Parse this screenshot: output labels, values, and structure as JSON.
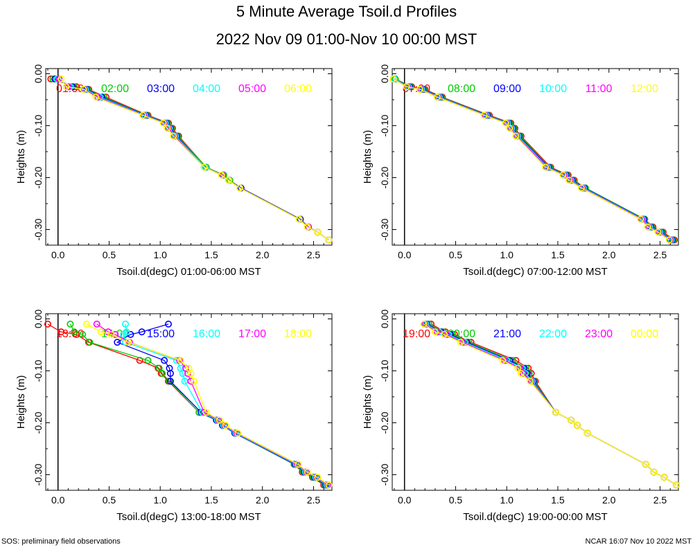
{
  "title": "5 Minute Average Tsoil.d Profiles",
  "subtitle": "2022 Nov 09 01:00-Nov 10 00:00 MST",
  "footer": {
    "left": "SOS: preliminary field observations",
    "right": "NCAR 16:07 Nov 10 2022 MST"
  },
  "colors": [
    "#ff0000",
    "#00cc00",
    "#0000ff",
    "#00ffff",
    "#ff00ff",
    "#ffff00"
  ],
  "chart_data": [
    {
      "type": "line",
      "xlabel": "Tsoil.d(degC) 01:00-06:00 MST",
      "ylabel": "Heights (m)",
      "xlim": [
        -0.12,
        2.68
      ],
      "ylim": [
        0.01,
        -0.33
      ],
      "xticks": [
        0.0,
        0.5,
        1.0,
        1.5,
        2.0,
        2.5
      ],
      "xtick_labels": [
        "0.0",
        "0.5",
        "1.0",
        "1.5",
        "2.0",
        "2.5"
      ],
      "yticks": [
        0.0,
        -0.1,
        -0.2,
        -0.3
      ],
      "ytick_labels": [
        "0.00",
        "-0.10",
        "-0.20",
        "-0.30"
      ],
      "series": [
        {
          "name": "01:00",
          "y": [
            -0.01,
            -0.025,
            -0.03,
            -0.045,
            -0.08,
            -0.095,
            -0.105,
            -0.12,
            -0.18,
            -0.195,
            -0.205,
            -0.22,
            -0.28,
            -0.295,
            -0.305,
            -0.32
          ],
          "x": [
            -0.07,
            0.18,
            0.3,
            0.47,
            0.88,
            1.08,
            1.12,
            1.18,
            1.45,
            1.62,
            1.68,
            1.79,
            2.37,
            2.45,
            2.54,
            2.65
          ]
        },
        {
          "name": "02:00",
          "y": [
            -0.01,
            -0.025,
            -0.03,
            -0.045,
            -0.08,
            -0.095,
            -0.105,
            -0.12,
            -0.18,
            -0.195,
            -0.205,
            -0.22,
            -0.28,
            -0.295,
            -0.305,
            -0.32
          ],
          "x": [
            -0.05,
            0.16,
            0.29,
            0.45,
            0.87,
            1.07,
            1.11,
            1.17,
            1.45,
            1.62,
            1.68,
            1.79,
            2.37,
            2.45,
            2.54,
            2.65
          ]
        },
        {
          "name": "03:00",
          "y": [
            -0.01,
            -0.025,
            -0.03,
            -0.045,
            -0.08,
            -0.095,
            -0.105,
            -0.12,
            -0.18,
            -0.195,
            -0.205,
            -0.22,
            -0.28,
            -0.295,
            -0.305,
            -0.32
          ],
          "x": [
            -0.03,
            0.14,
            0.28,
            0.43,
            0.86,
            1.06,
            1.1,
            1.16,
            1.44,
            1.61,
            1.67,
            1.79,
            2.37,
            2.45,
            2.54,
            2.65
          ]
        },
        {
          "name": "04:00",
          "y": [
            -0.01,
            -0.025,
            -0.03,
            -0.045,
            -0.08,
            -0.095,
            -0.105,
            -0.12,
            -0.18,
            -0.195,
            -0.205,
            -0.22,
            -0.28,
            -0.295,
            -0.305,
            -0.32
          ],
          "x": [
            -0.01,
            0.12,
            0.27,
            0.41,
            0.85,
            1.05,
            1.09,
            1.15,
            1.44,
            1.61,
            1.67,
            1.78,
            2.36,
            2.45,
            2.54,
            2.65
          ]
        },
        {
          "name": "05:00",
          "y": [
            -0.01,
            -0.025,
            -0.03,
            -0.045,
            -0.08,
            -0.095,
            -0.105,
            -0.12,
            -0.18,
            -0.195,
            -0.205,
            -0.22,
            -0.28,
            -0.295,
            -0.305,
            -0.32
          ],
          "x": [
            0.01,
            0.1,
            0.26,
            0.39,
            0.84,
            1.04,
            1.08,
            1.14,
            1.43,
            1.61,
            1.67,
            1.78,
            2.36,
            2.45,
            2.54,
            2.65
          ]
        },
        {
          "name": "06:00",
          "y": [
            -0.01,
            -0.025,
            -0.03,
            -0.045,
            -0.08,
            -0.095,
            -0.105,
            -0.12,
            -0.18,
            -0.195,
            -0.205,
            -0.22,
            -0.28,
            -0.295,
            -0.305,
            -0.32
          ],
          "x": [
            0.03,
            0.08,
            0.25,
            0.37,
            0.83,
            1.03,
            1.07,
            1.13,
            1.43,
            1.6,
            1.67,
            1.78,
            2.36,
            2.44,
            2.54,
            2.65
          ]
        }
      ]
    },
    {
      "type": "line",
      "xlabel": "Tsoil.d(degC) 07:00-12:00 MST",
      "ylabel": "Heights (m)",
      "xlim": [
        -0.12,
        2.68
      ],
      "ylim": [
        0.01,
        -0.33
      ],
      "xticks": [
        0.0,
        0.5,
        1.0,
        1.5,
        2.0,
        2.5
      ],
      "xtick_labels": [
        "0.0",
        "0.5",
        "1.0",
        "1.5",
        "2.0",
        "2.5"
      ],
      "yticks": [
        0.0,
        -0.1,
        -0.2,
        -0.3
      ],
      "ytick_labels": [
        "0.00",
        "-0.10",
        "-0.20",
        "-0.30"
      ],
      "series": [
        {
          "name": "07:00",
          "y": [
            -0.01,
            -0.025,
            -0.03,
            -0.045,
            -0.08,
            -0.095,
            -0.105,
            -0.12,
            -0.18,
            -0.195,
            -0.205,
            -0.22,
            -0.28,
            -0.295,
            -0.305,
            -0.32
          ],
          "x": [
            -0.09,
            0.07,
            0.2,
            0.37,
            0.83,
            1.04,
            1.08,
            1.14,
            1.43,
            1.6,
            1.66,
            1.77,
            2.35,
            2.43,
            2.53,
            2.64
          ]
        },
        {
          "name": "08:00",
          "y": [
            -0.01,
            -0.025,
            -0.03,
            -0.045,
            -0.08,
            -0.095,
            -0.105,
            -0.12,
            -0.18,
            -0.195,
            -0.205,
            -0.22,
            -0.28,
            -0.295,
            -0.305,
            -0.32
          ],
          "x": [
            -0.09,
            0.06,
            0.19,
            0.36,
            0.82,
            1.03,
            1.07,
            1.13,
            1.42,
            1.59,
            1.65,
            1.77,
            2.35,
            2.42,
            2.52,
            2.63
          ]
        },
        {
          "name": "09:00",
          "y": [
            -0.01,
            -0.025,
            -0.03,
            -0.045,
            -0.08,
            -0.095,
            -0.105,
            -0.12,
            -0.18,
            -0.195,
            -0.205,
            -0.22,
            -0.28,
            -0.295,
            -0.305,
            -0.32
          ],
          "x": [
            -0.1,
            0.05,
            0.18,
            0.35,
            0.81,
            1.02,
            1.06,
            1.12,
            1.41,
            1.58,
            1.64,
            1.76,
            2.34,
            2.41,
            2.51,
            2.62
          ]
        },
        {
          "name": "10:00",
          "y": [
            -0.01,
            -0.025,
            -0.03,
            -0.045,
            -0.08,
            -0.095,
            -0.105,
            -0.12,
            -0.18,
            -0.195,
            -0.205,
            -0.22,
            -0.28,
            -0.295,
            -0.305,
            -0.32
          ],
          "x": [
            -0.1,
            0.04,
            0.17,
            0.34,
            0.8,
            1.01,
            1.05,
            1.11,
            1.4,
            1.57,
            1.63,
            1.75,
            2.33,
            2.4,
            2.5,
            2.61
          ]
        },
        {
          "name": "11:00",
          "y": [
            -0.01,
            -0.025,
            -0.03,
            -0.045,
            -0.08,
            -0.095,
            -0.105,
            -0.12,
            -0.18,
            -0.195,
            -0.205,
            -0.22,
            -0.28,
            -0.295,
            -0.305,
            -0.32
          ],
          "x": [
            -0.11,
            0.03,
            0.16,
            0.33,
            0.79,
            1.0,
            1.04,
            1.1,
            1.39,
            1.56,
            1.62,
            1.74,
            2.32,
            2.39,
            2.49,
            2.6
          ]
        },
        {
          "name": "12:00",
          "y": [
            -0.01,
            -0.025,
            -0.03,
            -0.045,
            -0.08,
            -0.095,
            -0.105,
            -0.12,
            -0.18,
            -0.195,
            -0.205,
            -0.22,
            -0.28,
            -0.295,
            -0.305,
            -0.32
          ],
          "x": [
            -0.11,
            0.02,
            0.15,
            0.32,
            0.78,
            0.99,
            1.03,
            1.09,
            1.38,
            1.55,
            1.61,
            1.73,
            2.31,
            2.38,
            2.48,
            2.59
          ]
        }
      ]
    },
    {
      "type": "line",
      "xlabel": "Tsoil.d(degC) 13:00-18:00 MST",
      "ylabel": "Heights (m)",
      "xlim": [
        -0.12,
        2.68
      ],
      "ylim": [
        0.01,
        -0.33
      ],
      "xticks": [
        0.0,
        0.5,
        1.0,
        1.5,
        2.0,
        2.5
      ],
      "xtick_labels": [
        "0.0",
        "0.5",
        "1.0",
        "1.5",
        "2.0",
        "2.5"
      ],
      "yticks": [
        0.0,
        -0.1,
        -0.2,
        -0.3
      ],
      "ytick_labels": [
        "0.00",
        "-0.10",
        "-0.20",
        "-0.30"
      ],
      "series": [
        {
          "name": "13:00",
          "y": [
            -0.01,
            -0.025,
            -0.03,
            -0.045,
            -0.08,
            -0.095,
            -0.105,
            -0.12,
            -0.18,
            -0.195,
            -0.205,
            -0.22,
            -0.28,
            -0.295,
            -0.305,
            -0.32
          ],
          "x": [
            -0.1,
            0.03,
            0.18,
            0.3,
            0.8,
            0.98,
            1.01,
            1.08,
            1.38,
            1.55,
            1.61,
            1.73,
            2.31,
            2.39,
            2.49,
            2.6
          ]
        },
        {
          "name": "14:00",
          "y": [
            -0.01,
            -0.025,
            -0.03,
            -0.045,
            -0.08,
            -0.095,
            -0.105,
            -0.12,
            -0.18,
            -0.195,
            -0.205,
            -0.22,
            -0.28,
            -0.295,
            -0.305,
            -0.32
          ],
          "x": [
            0.12,
            0.16,
            0.24,
            0.31,
            0.88,
            0.99,
            1.02,
            1.09,
            1.38,
            1.55,
            1.61,
            1.73,
            2.31,
            2.4,
            2.5,
            2.61
          ]
        },
        {
          "name": "15:00",
          "y": [
            -0.01,
            -0.025,
            -0.03,
            -0.045,
            -0.08,
            -0.095,
            -0.105,
            -0.12,
            -0.18,
            -0.195,
            -0.205,
            -0.22,
            -0.28,
            -0.295,
            -0.305,
            -0.32
          ],
          "x": [
            1.08,
            0.82,
            0.71,
            0.58,
            1.04,
            1.09,
            1.1,
            1.1,
            1.4,
            1.55,
            1.61,
            1.73,
            2.32,
            2.41,
            2.51,
            2.62
          ]
        },
        {
          "name": "16:00",
          "y": [
            -0.01,
            -0.025,
            -0.03,
            -0.045,
            -0.08,
            -0.095,
            -0.105,
            -0.12,
            -0.18,
            -0.195,
            -0.205,
            -0.22,
            -0.28,
            -0.295,
            -0.305,
            -0.32
          ],
          "x": [
            0.66,
            0.67,
            0.64,
            0.66,
            1.16,
            1.2,
            1.22,
            1.24,
            1.41,
            1.56,
            1.62,
            1.74,
            2.33,
            2.42,
            2.52,
            2.63
          ]
        },
        {
          "name": "17:00",
          "y": [
            -0.01,
            -0.025,
            -0.03,
            -0.045,
            -0.08,
            -0.095,
            -0.105,
            -0.12,
            -0.18,
            -0.195,
            -0.205,
            -0.22,
            -0.28,
            -0.295,
            -0.305,
            -0.32
          ],
          "x": [
            0.38,
            0.49,
            0.56,
            0.7,
            1.19,
            1.25,
            1.27,
            1.3,
            1.43,
            1.57,
            1.63,
            1.75,
            2.34,
            2.43,
            2.53,
            2.64
          ]
        },
        {
          "name": "18:00",
          "y": [
            -0.01,
            -0.025,
            -0.03,
            -0.045,
            -0.08,
            -0.095,
            -0.105,
            -0.12,
            -0.18,
            -0.195,
            -0.205,
            -0.22,
            -0.28,
            -0.295,
            -0.305,
            -0.32
          ],
          "x": [
            0.28,
            0.42,
            0.52,
            0.69,
            1.2,
            1.28,
            1.3,
            1.33,
            1.45,
            1.58,
            1.64,
            1.76,
            2.35,
            2.44,
            2.54,
            2.65
          ]
        }
      ]
    },
    {
      "type": "line",
      "xlabel": "Tsoil.d(degC) 19:00-00:00 MST",
      "ylabel": "Heights (m)",
      "xlim": [
        -0.12,
        2.68
      ],
      "ylim": [
        0.01,
        -0.33
      ],
      "xticks": [
        0.0,
        0.5,
        1.0,
        1.5,
        2.0,
        2.5
      ],
      "xtick_labels": [
        "0.0",
        "0.5",
        "1.0",
        "1.5",
        "2.0",
        "2.5"
      ],
      "yticks": [
        0.0,
        -0.1,
        -0.2,
        -0.3
      ],
      "ytick_labels": [
        "0.00",
        "-0.10",
        "-0.20",
        "-0.30"
      ],
      "series": [
        {
          "name": "19:00",
          "y": [
            -0.01,
            -0.025,
            -0.03,
            -0.045,
            -0.08,
            -0.095,
            -0.105,
            -0.12,
            -0.18,
            -0.195,
            -0.205,
            -0.22,
            -0.28,
            -0.295,
            -0.305,
            -0.32
          ],
          "x": [
            0.26,
            0.4,
            0.49,
            0.65,
            1.09,
            1.21,
            1.24,
            1.28,
            1.48,
            1.63,
            1.69,
            1.79,
            2.36,
            2.44,
            2.54,
            2.66
          ]
        },
        {
          "name": "20:00",
          "y": [
            -0.01,
            -0.025,
            -0.03,
            -0.045,
            -0.08,
            -0.095,
            -0.105,
            -0.12,
            -0.18,
            -0.195,
            -0.205,
            -0.22,
            -0.28,
            -0.295,
            -0.305,
            -0.32
          ],
          "x": [
            0.24,
            0.38,
            0.47,
            0.63,
            1.06,
            1.19,
            1.22,
            1.27,
            1.48,
            1.63,
            1.69,
            1.79,
            2.36,
            2.44,
            2.54,
            2.66
          ]
        },
        {
          "name": "21:00",
          "y": [
            -0.01,
            -0.025,
            -0.03,
            -0.045,
            -0.08,
            -0.095,
            -0.105,
            -0.12,
            -0.18,
            -0.195,
            -0.205,
            -0.22,
            -0.28,
            -0.295,
            -0.305,
            -0.32
          ],
          "x": [
            0.22,
            0.36,
            0.45,
            0.61,
            1.03,
            1.17,
            1.2,
            1.26,
            1.48,
            1.63,
            1.69,
            1.79,
            2.36,
            2.44,
            2.54,
            2.66
          ]
        },
        {
          "name": "22:00",
          "y": [
            -0.01,
            -0.025,
            -0.03,
            -0.045,
            -0.08,
            -0.095,
            -0.105,
            -0.12,
            -0.18,
            -0.195,
            -0.205,
            -0.22,
            -0.28,
            -0.295,
            -0.305,
            -0.32
          ],
          "x": [
            0.21,
            0.34,
            0.43,
            0.59,
            1.0,
            1.15,
            1.18,
            1.25,
            1.48,
            1.63,
            1.69,
            1.79,
            2.36,
            2.44,
            2.54,
            2.66
          ]
        },
        {
          "name": "23:00",
          "y": [
            -0.01,
            -0.025,
            -0.03,
            -0.045,
            -0.08,
            -0.095,
            -0.105,
            -0.12,
            -0.18,
            -0.195,
            -0.205,
            -0.22,
            -0.28,
            -0.295,
            -0.305,
            -0.32
          ],
          "x": [
            0.2,
            0.32,
            0.41,
            0.57,
            0.98,
            1.13,
            1.16,
            1.24,
            1.48,
            1.63,
            1.69,
            1.79,
            2.36,
            2.44,
            2.54,
            2.66
          ]
        },
        {
          "name": "00:00",
          "y": [
            -0.01,
            -0.025,
            -0.03,
            -0.045,
            -0.08,
            -0.095,
            -0.105,
            -0.12,
            -0.18,
            -0.195,
            -0.205,
            -0.22,
            -0.28,
            -0.295,
            -0.305,
            -0.32
          ],
          "x": [
            0.19,
            0.3,
            0.39,
            0.55,
            0.96,
            1.11,
            1.14,
            1.23,
            1.48,
            1.63,
            1.69,
            1.79,
            2.36,
            2.44,
            2.54,
            2.66
          ]
        }
      ]
    }
  ]
}
